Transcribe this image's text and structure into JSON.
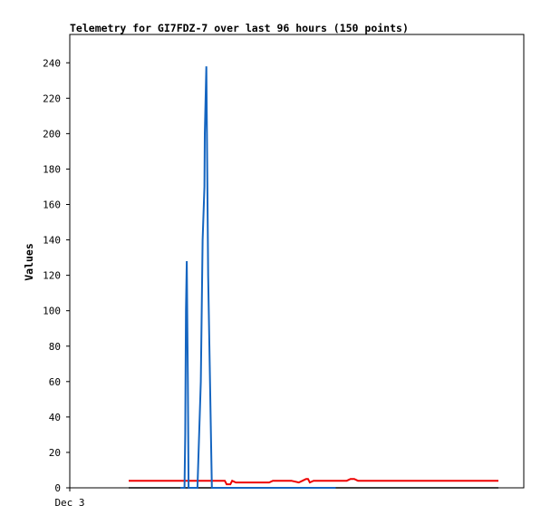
{
  "chart_data": {
    "type": "line",
    "title": "Telemetry for GI7FDZ-7 over last 96 hours (150 points)",
    "ylabel": "Values",
    "xlabel": "",
    "x_tick_labels": [
      "Dec 3"
    ],
    "ylim": [
      0,
      256
    ],
    "yticks": [
      0,
      20,
      40,
      60,
      80,
      100,
      120,
      140,
      160,
      180,
      200,
      220,
      240
    ],
    "grid": false,
    "colors": {
      "blue": "#1565c0",
      "red": "#ee0000",
      "black": "#000000"
    },
    "series": [
      {
        "color": "blue",
        "x": [
          0.14,
          0.15,
          0.151,
          0.153,
          0.155,
          0.157,
          0.16,
          0.162,
          0.17,
          0.178,
          0.186,
          0.195,
          0.2,
          0.205,
          0.206,
          0.21,
          0.215,
          0.225,
          0.226,
          0.23,
          0.232,
          0.235,
          0.236,
          0.24,
          0.242,
          0.244,
          0.246,
          0.248,
          0.25,
          0.253,
          0.255,
          0.258,
          0.262,
          0.265,
          0.268,
          0.27,
          0.278,
          0.283,
          0.286,
          0.289,
          0.293,
          0.296,
          0.3,
          0.302,
          0.305,
          0.308,
          0.31,
          0.312,
          0.315,
          0.32,
          0.325,
          0.33,
          0.335,
          0.34,
          0.345,
          0.35,
          0.36,
          0.38,
          0.383,
          0.386,
          0.389,
          0.392,
          0.394,
          0.41,
          0.412,
          0.42,
          0.435,
          0.437,
          0.44,
          0.442,
          0.445,
          0.447,
          0.449,
          0.451,
          0.453,
          0.456,
          0.458,
          0.462,
          0.465,
          0.467,
          0.47,
          0.475,
          0.48,
          0.484,
          0.486,
          0.488,
          0.49,
          0.492,
          0.494,
          0.497,
          0.5,
          0.505,
          0.51,
          0.515,
          0.52,
          0.53,
          0.54,
          0.55,
          0.56
        ],
        "values": [
          0,
          0,
          0,
          30,
          100,
          128,
          60,
          0,
          0,
          0,
          0,
          60,
          140,
          170,
          200,
          238,
          120,
          0,
          0,
          0,
          0,
          0,
          0,
          0,
          0,
          0,
          0,
          0,
          0,
          0,
          0,
          0,
          0,
          0,
          0,
          0,
          0,
          0,
          0,
          0,
          0,
          0,
          0,
          0,
          0,
          0,
          0,
          0,
          0,
          0,
          0,
          0,
          0,
          0,
          0,
          0,
          0,
          0,
          0,
          0,
          0,
          0,
          0,
          0,
          0,
          0,
          0,
          0,
          0,
          0,
          0,
          0,
          0,
          0,
          0,
          0,
          0,
          0,
          0,
          0,
          0,
          0,
          0,
          0,
          0,
          0,
          0,
          0,
          0,
          0,
          0,
          0,
          0,
          0,
          0,
          0,
          0,
          0,
          0
        ]
      },
      {
        "color": "red",
        "x": [
          0,
          0.26,
          0.265,
          0.275,
          0.28,
          0.29,
          0.36,
          0.38,
          0.39,
          0.44,
          0.46,
          0.47,
          0.48,
          0.485,
          0.49,
          0.5,
          0.59,
          0.6,
          0.61,
          0.62,
          1.0
        ],
        "values": [
          4,
          4,
          2,
          2,
          4,
          3,
          3,
          3,
          4,
          4,
          3,
          4,
          5,
          5,
          3,
          4,
          4,
          5,
          5,
          4,
          4
        ]
      },
      {
        "color": "black",
        "x": [
          0,
          1.0
        ],
        "values": [
          0,
          0
        ]
      }
    ]
  }
}
